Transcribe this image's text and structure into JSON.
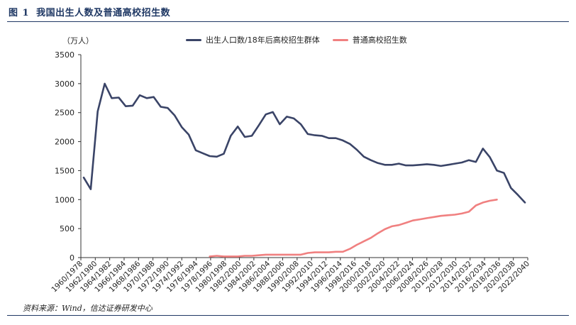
{
  "figure": {
    "label": "图",
    "number": "1",
    "title": "我国出生人数及普通高校招生数",
    "source": "资料来源：Wind，信达证券研发中心"
  },
  "chart_data": {
    "type": "line",
    "unit_label": "（万人）",
    "ylim": [
      0,
      3500
    ],
    "yticks": [
      0,
      500,
      1000,
      1500,
      2000,
      2500,
      3000,
      3500
    ],
    "tick_labels": [
      "1960/1978",
      "1962/1980",
      "1964/1982",
      "1966/1984",
      "1968/1986",
      "1970/1988",
      "1972/1990",
      "1974/1992",
      "1976/1994",
      "1978/1996",
      "1980/1998",
      "1982/2000",
      "1984/2002",
      "1986/2004",
      "1988/2006",
      "1990/2008",
      "1992/2010",
      "1994/2012",
      "1996/2014",
      "1998/2016",
      "2000/2018",
      "2002/2020",
      "2004/2022",
      "2006/2024",
      "2008/2026",
      "2010/2028",
      "2012/2030",
      "2014/2032",
      "2016/2034",
      "2018/2036",
      "2020/2038",
      "2022/2040"
    ],
    "grid": false,
    "legend_position": "top",
    "series": [
      {
        "name": "出生人口数/18年后高校招生群体",
        "color": "#3a4467",
        "values": [
          1380,
          1180,
          2520,
          3000,
          2750,
          2760,
          2610,
          2620,
          2800,
          2750,
          2770,
          2600,
          2580,
          2450,
          2250,
          2120,
          1850,
          1800,
          1750,
          1740,
          1790,
          2100,
          2260,
          2080,
          2100,
          2280,
          2470,
          2510,
          2300,
          2430,
          2400,
          2300,
          2130,
          2110,
          2100,
          2060,
          2060,
          2020,
          1960,
          1860,
          1740,
          1680,
          1630,
          1600,
          1600,
          1620,
          1590,
          1590,
          1600,
          1610,
          1600,
          1580,
          1600,
          1620,
          1640,
          1680,
          1650,
          1880,
          1730,
          1500,
          1460,
          1200,
          1080,
          950
        ]
      },
      {
        "name": "普通高校招生数",
        "color": "#f08080",
        "values": [
          null,
          null,
          null,
          null,
          null,
          null,
          null,
          null,
          null,
          null,
          null,
          null,
          null,
          null,
          null,
          null,
          null,
          null,
          20,
          30,
          20,
          20,
          20,
          30,
          30,
          40,
          50,
          50,
          50,
          50,
          50,
          50,
          80,
          90,
          90,
          90,
          100,
          100,
          150,
          220,
          280,
          340,
          420,
          490,
          540,
          560,
          600,
          640,
          660,
          680,
          700,
          720,
          730,
          740,
          760,
          790,
          900,
          950,
          980,
          1000
        ]
      }
    ]
  }
}
